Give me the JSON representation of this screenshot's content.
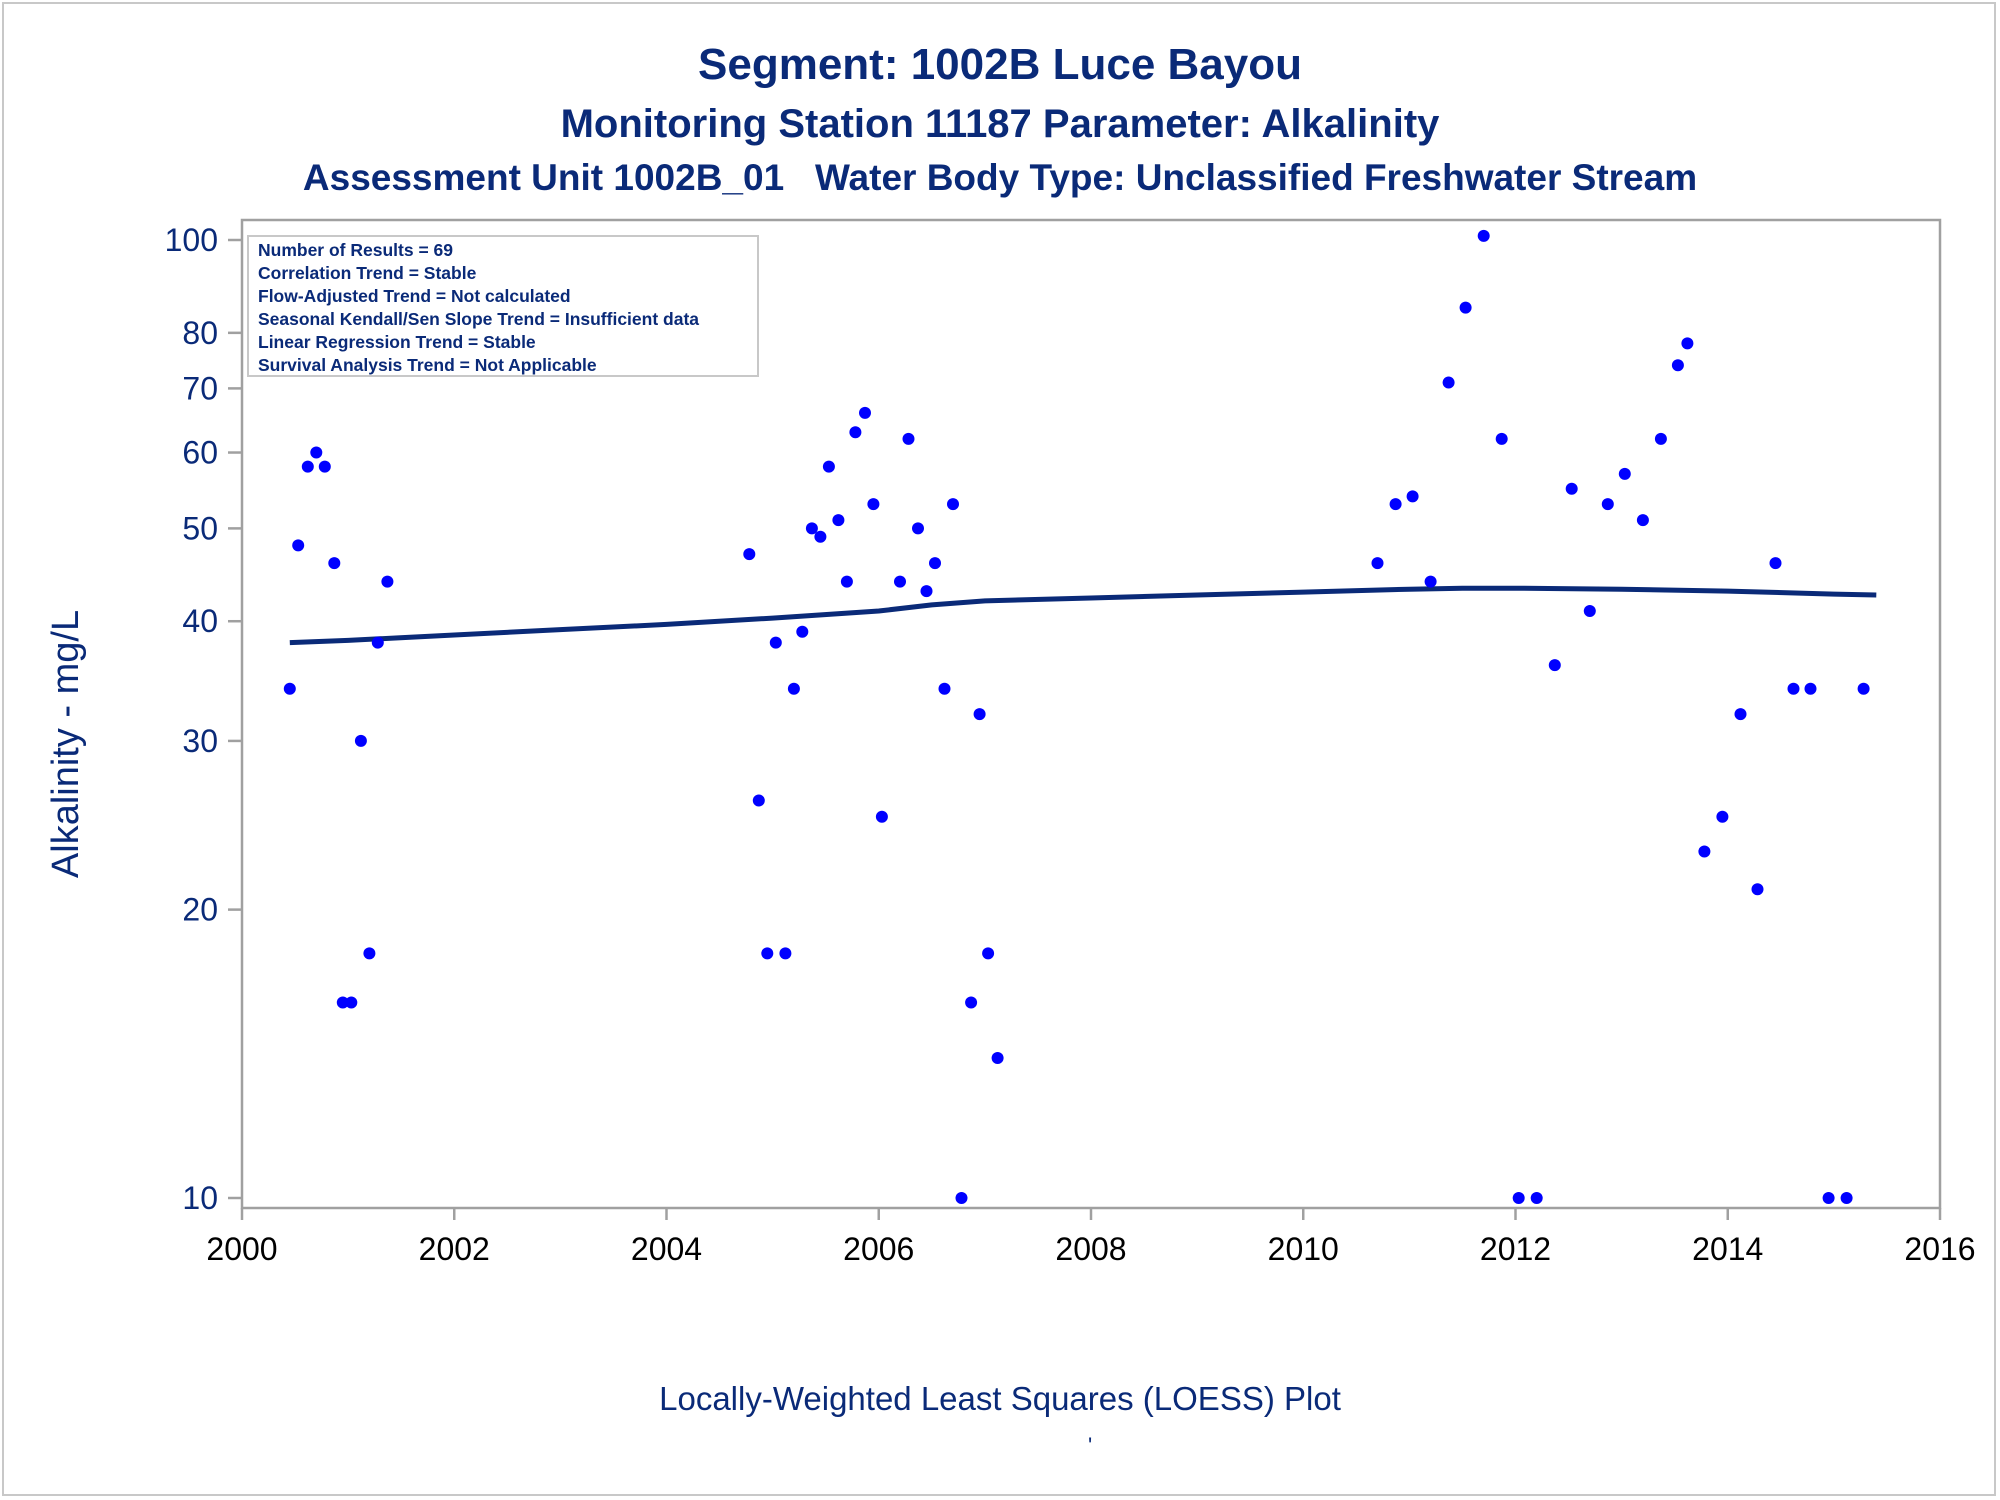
{
  "titles": {
    "line1": "Segment: 1002B  Luce Bayou",
    "line2": "Monitoring Station 11187 Parameter: Alkalinity",
    "line3_left": "Assessment Unit 1002B_01",
    "line3_right": "Water Body Type: Unclassified Freshwater Stream"
  },
  "stats_box": {
    "lines": [
      "Number of Results = 69",
      "Correlation Trend = Stable",
      "Flow-Adjusted Trend = Not calculated",
      "Seasonal Kendall/Sen Slope Trend = Insufficient data",
      "Linear Regression Trend = Stable",
      "Survival Analysis Trend = Not Applicable"
    ]
  },
  "footnote": "Locally-Weighted Least Squares (LOESS) Plot",
  "footnote_mark": "'",
  "colors": {
    "text": "#0a2a78",
    "points": "#0000ff",
    "loess_line": "#0a2a78",
    "axis": "#a0a0a0"
  },
  "chart_data": {
    "type": "scatter",
    "title": "Segment: 1002B  Luce Bayou",
    "xlabel": "",
    "ylabel": "Alkalinity - mg/L",
    "xscale": "linear",
    "yscale": "log",
    "xlim": [
      2000,
      2016
    ],
    "ylim": [
      10,
      100
    ],
    "xticks": [
      2000,
      2002,
      2004,
      2006,
      2008,
      2010,
      2012,
      2014,
      2016
    ],
    "yticks": [
      10,
      20,
      30,
      40,
      50,
      60,
      70,
      80,
      100
    ],
    "grid": false,
    "series": [
      {
        "kind": "points",
        "points": [
          [
            2000.45,
            34
          ],
          [
            2000.53,
            48
          ],
          [
            2000.62,
            58
          ],
          [
            2000.7,
            60
          ],
          [
            2000.78,
            58
          ],
          [
            2000.87,
            46
          ],
          [
            2000.95,
            16
          ],
          [
            2001.03,
            16
          ],
          [
            2001.12,
            30
          ],
          [
            2001.2,
            18
          ],
          [
            2001.28,
            38
          ],
          [
            2001.37,
            44
          ],
          [
            2004.78,
            47
          ],
          [
            2004.87,
            26
          ],
          [
            2004.95,
            18
          ],
          [
            2005.03,
            38
          ],
          [
            2005.12,
            18
          ],
          [
            2005.2,
            34
          ],
          [
            2005.28,
            39
          ],
          [
            2005.37,
            50
          ],
          [
            2005.45,
            49
          ],
          [
            2005.53,
            58
          ],
          [
            2005.62,
            51
          ],
          [
            2005.7,
            44
          ],
          [
            2005.78,
            63
          ],
          [
            2005.87,
            66
          ],
          [
            2005.95,
            53
          ],
          [
            2006.03,
            25
          ],
          [
            2006.2,
            44
          ],
          [
            2006.28,
            62
          ],
          [
            2006.37,
            50
          ],
          [
            2006.45,
            43
          ],
          [
            2006.53,
            46
          ],
          [
            2006.62,
            34
          ],
          [
            2006.7,
            53
          ],
          [
            2006.78,
            10
          ],
          [
            2006.87,
            16
          ],
          [
            2006.95,
            32
          ],
          [
            2007.03,
            18
          ],
          [
            2007.12,
            14
          ],
          [
            2010.7,
            46
          ],
          [
            2010.87,
            53
          ],
          [
            2011.03,
            54
          ],
          [
            2011.2,
            44
          ],
          [
            2011.37,
            71
          ],
          [
            2011.53,
            85
          ],
          [
            2011.7,
            101
          ],
          [
            2011.87,
            62
          ],
          [
            2012.03,
            10
          ],
          [
            2012.2,
            10
          ],
          [
            2012.37,
            36
          ],
          [
            2012.53,
            55
          ],
          [
            2012.7,
            41
          ],
          [
            2012.87,
            53
          ],
          [
            2013.03,
            57
          ],
          [
            2013.2,
            51
          ],
          [
            2013.37,
            62
          ],
          [
            2013.53,
            74
          ],
          [
            2013.62,
            78
          ],
          [
            2013.78,
            23
          ],
          [
            2013.95,
            25
          ],
          [
            2014.12,
            32
          ],
          [
            2014.28,
            21
          ],
          [
            2014.45,
            46
          ],
          [
            2014.62,
            34
          ],
          [
            2014.78,
            34
          ],
          [
            2014.95,
            10
          ],
          [
            2015.12,
            10
          ],
          [
            2015.28,
            34
          ]
        ]
      },
      {
        "kind": "line",
        "points": [
          [
            2000.45,
            38.0
          ],
          [
            2001.0,
            38.2
          ],
          [
            2002.0,
            38.7
          ],
          [
            2003.0,
            39.2
          ],
          [
            2004.0,
            39.7
          ],
          [
            2005.0,
            40.3
          ],
          [
            2006.0,
            41.0
          ],
          [
            2006.5,
            41.6
          ],
          [
            2007.0,
            42.0
          ],
          [
            2008.0,
            42.3
          ],
          [
            2009.0,
            42.6
          ],
          [
            2010.0,
            42.9
          ],
          [
            2011.0,
            43.2
          ],
          [
            2011.5,
            43.3
          ],
          [
            2012.0,
            43.3
          ],
          [
            2013.0,
            43.2
          ],
          [
            2014.0,
            43.0
          ],
          [
            2015.0,
            42.7
          ],
          [
            2015.4,
            42.6
          ]
        ]
      }
    ]
  }
}
